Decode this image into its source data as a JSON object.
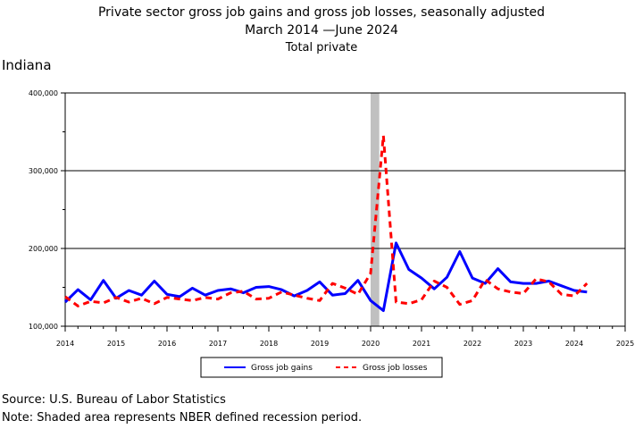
{
  "chart_data": {
    "type": "line",
    "title": "Private sector gross job gains and gross job losses, seasonally adjusted",
    "subtitle": "March 2014 —June 2024",
    "subtitle2": "Total private",
    "area_label": "Indiana",
    "xlim": [
      2014,
      2025
    ],
    "ylim": [
      100000,
      400000
    ],
    "x_ticks": [
      "2014",
      "2015",
      "2016",
      "2017",
      "2018",
      "2019",
      "2020",
      "2021",
      "2022",
      "2023",
      "2024",
      "2025"
    ],
    "y_ticks": [
      "100,000",
      "200,000",
      "300,000",
      "400,000"
    ],
    "y_tick_values": [
      100000,
      200000,
      300000,
      400000
    ],
    "grid": "horizontal",
    "legend_position": "bottom",
    "recession_shading": [
      2020.0,
      2020.17
    ],
    "x": [
      2014.0,
      2014.25,
      2014.5,
      2014.75,
      2015.0,
      2015.25,
      2015.5,
      2015.75,
      2016.0,
      2016.25,
      2016.5,
      2016.75,
      2017.0,
      2017.25,
      2017.5,
      2017.75,
      2018.0,
      2018.25,
      2018.5,
      2018.75,
      2019.0,
      2019.25,
      2019.5,
      2019.75,
      2020.0,
      2020.25,
      2020.5,
      2020.75,
      2021.0,
      2021.25,
      2021.5,
      2021.75,
      2022.0,
      2022.25,
      2022.5,
      2022.75,
      2023.0,
      2023.25,
      2023.5,
      2023.75,
      2024.0,
      2024.25
    ],
    "series": [
      {
        "name": "Gross job gains",
        "color": "#0000ff",
        "style": "solid",
        "values": [
          131000,
          147000,
          134000,
          159000,
          136000,
          146000,
          140000,
          158000,
          141000,
          138000,
          149000,
          140000,
          146000,
          148000,
          143000,
          150000,
          151000,
          147000,
          139000,
          146000,
          157000,
          140000,
          142000,
          159000,
          133000,
          120000,
          207000,
          173000,
          162000,
          148000,
          163000,
          196000,
          162000,
          155000,
          174000,
          157000,
          155000,
          155000,
          158000,
          152000,
          146000,
          144000
        ]
      },
      {
        "name": "Gross job losses",
        "color": "#ff0000",
        "style": "dashed",
        "values": [
          138000,
          126000,
          132000,
          130000,
          137000,
          131000,
          136000,
          129000,
          137000,
          135000,
          133000,
          137000,
          135000,
          143000,
          145000,
          135000,
          136000,
          144000,
          140000,
          136000,
          133000,
          155000,
          149000,
          141000,
          168000,
          345000,
          131000,
          129000,
          134000,
          158000,
          150000,
          128000,
          133000,
          160000,
          148000,
          144000,
          142000,
          161000,
          157000,
          141000,
          139000,
          155000
        ]
      }
    ],
    "legend": [
      {
        "label": "Gross job gains",
        "color": "#0000ff",
        "style": "solid"
      },
      {
        "label": "Gross job losses",
        "color": "#ff0000",
        "style": "dashed"
      }
    ]
  },
  "footer": {
    "source": "Source: U.S. Bureau of Labor Statistics",
    "note": "Note: Shaded area represents NBER defined recession period."
  }
}
